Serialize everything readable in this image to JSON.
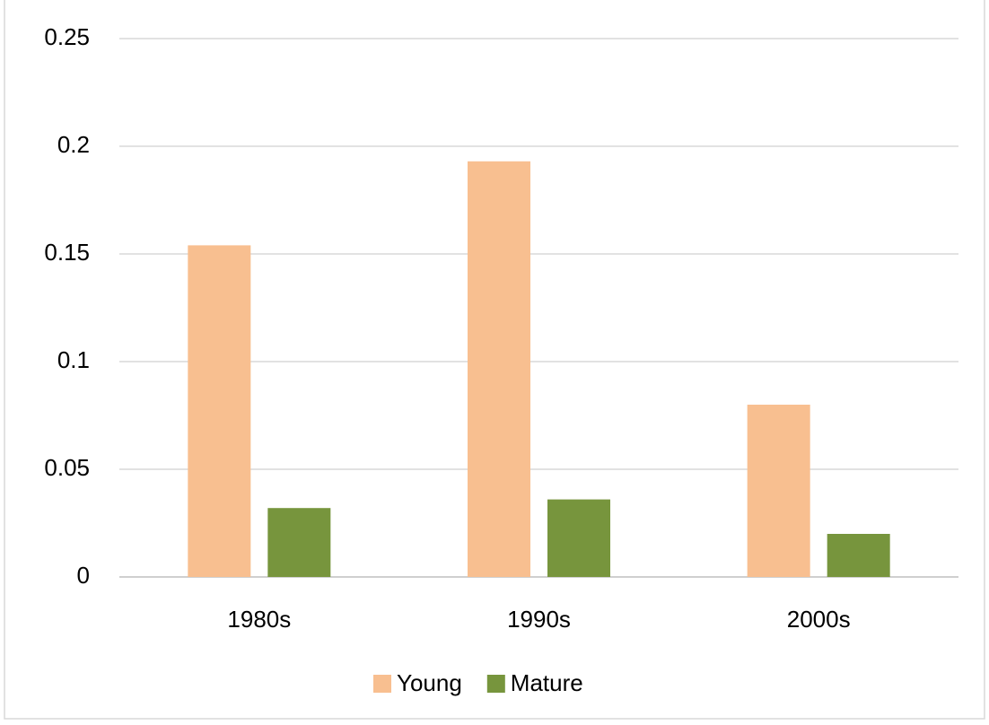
{
  "chart_data": {
    "type": "bar",
    "categories": [
      "1980s",
      "1990s",
      "2000s"
    ],
    "series": [
      {
        "name": "Young",
        "color": "#f8bf90",
        "values": [
          0.154,
          0.193,
          0.08
        ]
      },
      {
        "name": "Mature",
        "color": "#77953d",
        "values": [
          0.032,
          0.036,
          0.02
        ]
      }
    ],
    "ylim": [
      0,
      0.25
    ],
    "yticks": [
      0,
      0.05,
      0.1,
      0.15,
      0.2,
      0.25
    ],
    "grid": true,
    "legend": "bottom"
  }
}
